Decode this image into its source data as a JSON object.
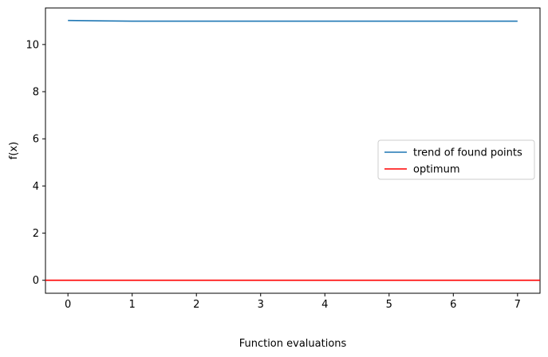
{
  "chart_data": {
    "type": "line",
    "title": "",
    "xlabel": "Function evaluations",
    "ylabel": "f(x)",
    "xlim": [
      -0.35,
      7.35
    ],
    "ylim": [
      -0.55,
      11.55
    ],
    "xticks": [
      0,
      1,
      2,
      3,
      4,
      5,
      6,
      7
    ],
    "yticks": [
      0,
      2,
      4,
      6,
      8,
      10
    ],
    "grid": false,
    "legend_position": "center-right",
    "series": [
      {
        "name": "trend of found points",
        "color": "#1f77b4",
        "x": [
          0,
          1,
          2,
          3,
          4,
          5,
          6,
          7
        ],
        "y": [
          11.02,
          10.99,
          10.99,
          10.99,
          10.99,
          10.99,
          10.99,
          10.99
        ]
      },
      {
        "name": "optimum",
        "color": "#ff0000",
        "kind": "hline",
        "y": 0
      }
    ]
  }
}
